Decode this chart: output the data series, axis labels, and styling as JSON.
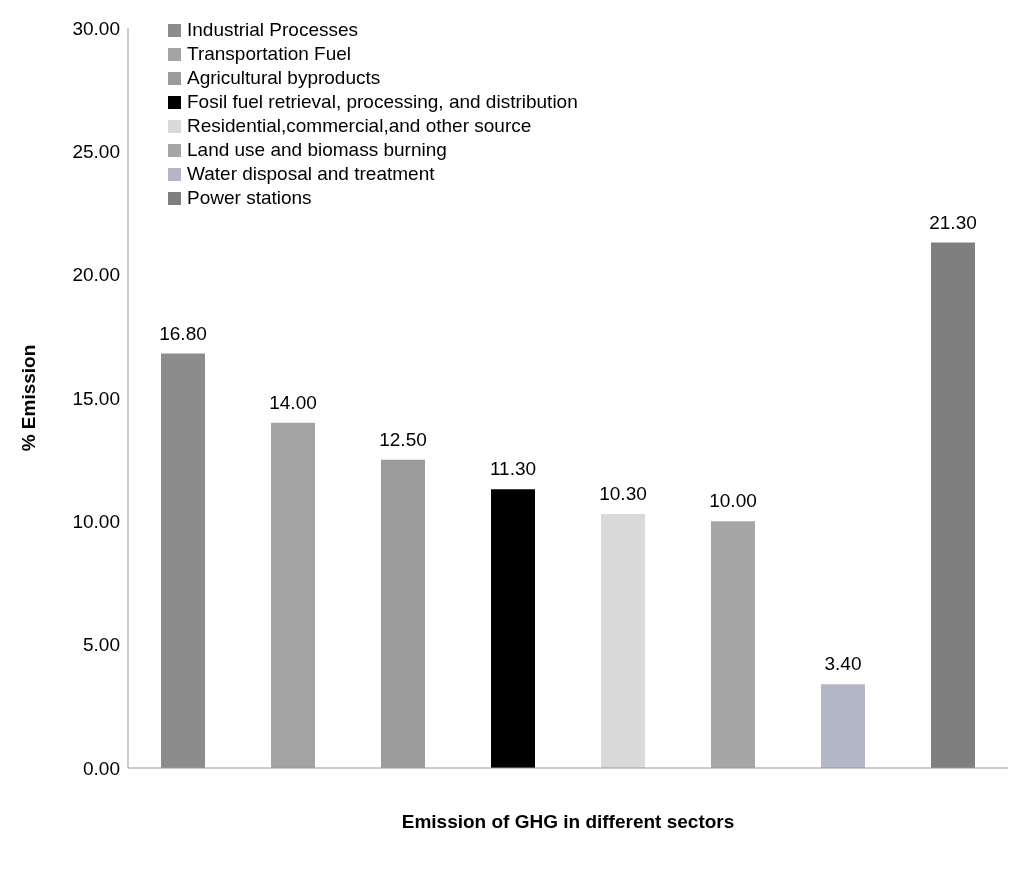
{
  "chart_data": {
    "type": "bar",
    "xlabel": "Emission of GHG in different sectors",
    "ylabel": "% Emission",
    "categories": [
      null,
      null,
      null,
      null,
      null,
      null,
      null,
      null
    ],
    "stacked": true,
    "series": [
      {
        "name": "Industrial Processes",
        "color": "#8c8c8c",
        "values": [
          16.8,
          null,
          null,
          null,
          null,
          null,
          null,
          null
        ],
        "value_labels": [
          "16.80",
          null,
          null,
          null,
          null,
          null,
          null,
          null
        ]
      },
      {
        "name": "Transportation Fuel",
        "color": "#a3a3a3",
        "values": [
          null,
          14.0,
          null,
          null,
          null,
          null,
          null,
          null
        ],
        "value_labels": [
          null,
          "14.00",
          null,
          null,
          null,
          null,
          null,
          null
        ]
      },
      {
        "name": "Agricultural byproducts",
        "color": "#9b9b9b",
        "values": [
          null,
          null,
          12.5,
          null,
          null,
          null,
          null,
          null
        ],
        "value_labels": [
          null,
          null,
          "12.50",
          null,
          null,
          null,
          null,
          null
        ]
      },
      {
        "name": "Fosil fuel retrieval, processing, and distribution",
        "color": "#000000",
        "values": [
          null,
          null,
          null,
          11.3,
          null,
          null,
          null,
          null
        ],
        "value_labels": [
          null,
          null,
          null,
          "11.30",
          null,
          null,
          null,
          null
        ]
      },
      {
        "name": "Residential,commercial,and other source",
        "color": "#d9d9d9",
        "values": [
          null,
          null,
          null,
          null,
          10.3,
          null,
          null,
          null
        ],
        "value_labels": [
          null,
          null,
          null,
          null,
          "10.30",
          null,
          null,
          null
        ]
      },
      {
        "name": "Land use and biomass burning",
        "color": "#a6a6a6",
        "values": [
          null,
          null,
          null,
          null,
          null,
          10.0,
          null,
          null
        ],
        "value_labels": [
          null,
          null,
          null,
          null,
          null,
          "10.00",
          null,
          null
        ]
      },
      {
        "name": "Water disposal and treatment",
        "color": "#b3b6c4",
        "values": [
          null,
          null,
          null,
          null,
          null,
          null,
          3.4,
          null
        ],
        "value_labels": [
          null,
          null,
          null,
          null,
          null,
          null,
          "3.40",
          null
        ]
      },
      {
        "name": "Power stations",
        "color": "#7f7f7f",
        "values": [
          null,
          null,
          null,
          null,
          null,
          null,
          null,
          21.3
        ],
        "value_labels": [
          null,
          null,
          null,
          null,
          null,
          null,
          null,
          "21.30"
        ]
      }
    ],
    "ylim": [
      0,
      30
    ],
    "yticks": [
      {
        "value": 0,
        "label": "0.00"
      },
      {
        "value": 5,
        "label": "5.00"
      },
      {
        "value": 10,
        "label": "10.00"
      },
      {
        "value": 15,
        "label": "15.00"
      },
      {
        "value": 20,
        "label": "20.00"
      },
      {
        "value": 25,
        "label": "25.00"
      },
      {
        "value": 30,
        "label": "30.00"
      }
    ],
    "legend": "top left",
    "grid": false
  }
}
